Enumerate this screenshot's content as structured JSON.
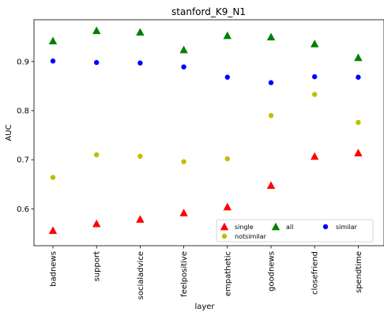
{
  "chart_data": {
    "type": "scatter",
    "title": "stanford_K9_N1",
    "xlabel": "layer",
    "ylabel": "AUC",
    "categories": [
      "badnews",
      "support",
      "socialadvice",
      "feelpositive",
      "empathetic",
      "goodnews",
      "closefriend",
      "spendtime"
    ],
    "ylim": [
      0.525,
      0.985
    ],
    "yticks": [
      0.6,
      0.7,
      0.8,
      0.9
    ],
    "ytick_labels": [
      "0.6",
      "0.7",
      "0.8",
      "0.9"
    ],
    "grid": false,
    "legend_placement": "lower-right",
    "series": [
      {
        "name": "single",
        "marker": "triangle",
        "color": "#ff0000",
        "values": [
          0.556,
          0.57,
          0.579,
          0.592,
          0.604,
          0.648,
          0.707,
          0.714
        ]
      },
      {
        "name": "all",
        "marker": "triangle",
        "color": "#008000",
        "values": [
          0.942,
          0.963,
          0.96,
          0.924,
          0.953,
          0.95,
          0.936,
          0.908
        ]
      },
      {
        "name": "similar",
        "marker": "circle",
        "color": "#0000ff",
        "values": [
          0.901,
          0.898,
          0.897,
          0.889,
          0.868,
          0.857,
          0.869,
          0.868
        ]
      },
      {
        "name": "notsimilar",
        "marker": "circle",
        "color": "#bfbf00",
        "values": [
          0.664,
          0.71,
          0.707,
          0.696,
          0.702,
          0.79,
          0.833,
          0.776
        ]
      }
    ]
  }
}
